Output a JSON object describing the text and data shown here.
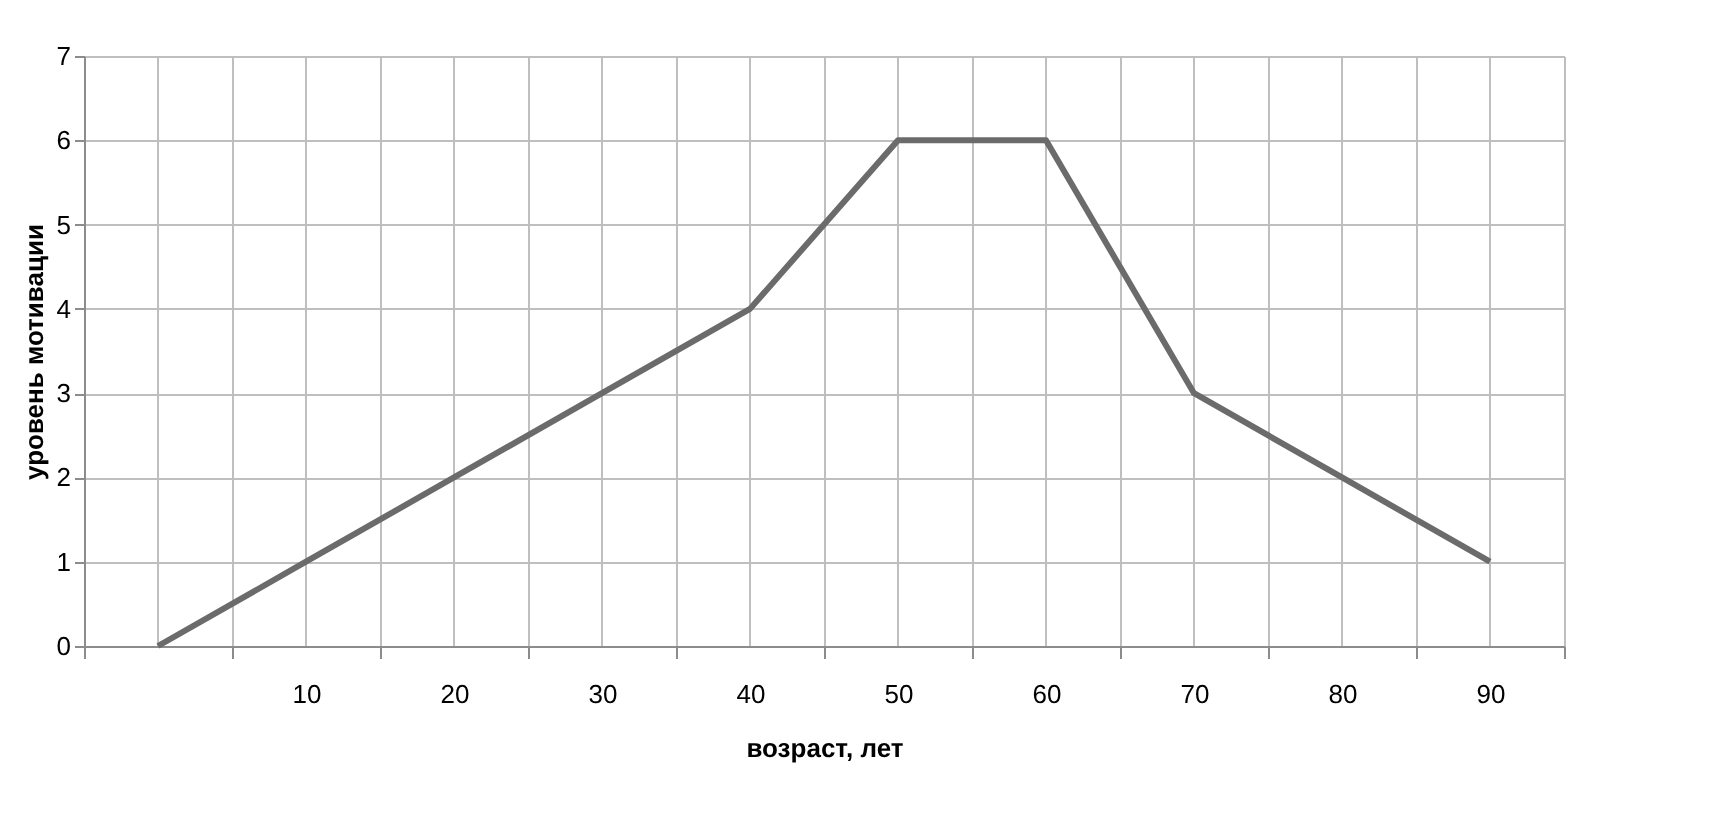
{
  "chart_data": {
    "type": "line",
    "xlabel": "возраст, лет",
    "ylabel": "уровень мотивации",
    "categories": [
      null,
      "10",
      "20",
      "30",
      "40",
      "50",
      "60",
      "70",
      "80",
      "90"
    ],
    "series": [
      {
        "color": "#6b6b6b",
        "values": [
          0,
          1,
          2,
          3,
          4,
          6,
          6,
          3,
          2,
          1
        ]
      }
    ],
    "ylim": [
      0,
      7
    ],
    "yticks": [
      0,
      1,
      2,
      3,
      4,
      5,
      6,
      7
    ],
    "grid": true,
    "marker": "none",
    "line_style": "solid"
  }
}
